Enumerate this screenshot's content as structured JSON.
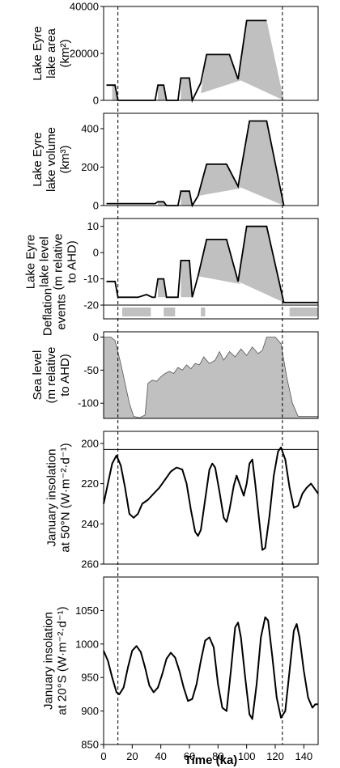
{
  "chart_data": {
    "type": "line",
    "x_axis": {
      "label": "Time (ka)",
      "lim": [
        0,
        150
      ],
      "ticks": [
        "0",
        "20",
        "40",
        "60",
        "80",
        "100",
        "120",
        "140"
      ]
    },
    "markers_ka": [
      10,
      125
    ],
    "fill_color": "#c0c0c0",
    "line_color": "#000000",
    "panels": [
      {
        "id": "area",
        "ylabel": [
          "Lake Eyre",
          "lake area",
          "(km²)"
        ],
        "ylim": [
          0,
          40000
        ],
        "yticks": [
          "0",
          "20000",
          "40000"
        ],
        "step_line": [
          [
            2,
            6500
          ],
          [
            8,
            6500
          ],
          [
            10,
            0
          ],
          [
            24,
            0
          ],
          [
            36,
            0
          ],
          [
            38,
            6500
          ],
          [
            42,
            6500
          ],
          [
            44,
            0
          ],
          [
            52,
            0
          ],
          [
            54,
            9500
          ],
          [
            60,
            9500
          ],
          [
            62,
            0
          ],
          [
            68,
            7500
          ],
          [
            72,
            19500
          ],
          [
            88,
            19500
          ],
          [
            94,
            9000
          ],
          [
            100,
            34000
          ],
          [
            114,
            34000
          ]
        ],
        "fill_polys": [
          [
            [
              6,
              6500
            ],
            [
              8,
              6500
            ],
            [
              10,
              0
            ],
            [
              6,
              0
            ]
          ],
          [
            [
              38,
              6500
            ],
            [
              42,
              6500
            ],
            [
              44,
              0
            ],
            [
              38,
              0
            ]
          ],
          [
            [
              54,
              9500
            ],
            [
              60,
              9500
            ],
            [
              62,
              0
            ],
            [
              54,
              0
            ]
          ],
          [
            [
              72,
              19500
            ],
            [
              88,
              19500
            ],
            [
              94,
              9000
            ],
            [
              96,
              8500
            ],
            [
              68,
              3000
            ]
          ],
          [
            [
              100,
              34000
            ],
            [
              114,
              34000
            ],
            [
              126,
              0
            ],
            [
              94,
              9000
            ]
          ]
        ]
      },
      {
        "id": "volume",
        "ylabel": [
          "Lake Eyre",
          "lake volume",
          "(km³)"
        ],
        "ylim": [
          0,
          480
        ],
        "yticks": [
          "0",
          "200",
          "400"
        ],
        "step_line": [
          [
            2,
            10
          ],
          [
            8,
            10
          ],
          [
            36,
            10
          ],
          [
            38,
            20
          ],
          [
            42,
            20
          ],
          [
            44,
            0
          ],
          [
            52,
            0
          ],
          [
            54,
            75
          ],
          [
            60,
            75
          ],
          [
            62,
            0
          ],
          [
            66,
            50
          ],
          [
            72,
            215
          ],
          [
            86,
            215
          ],
          [
            94,
            100
          ],
          [
            102,
            440
          ],
          [
            114,
            440
          ],
          [
            126,
            0
          ]
        ],
        "fill_polys": [
          [
            [
              38,
              20
            ],
            [
              42,
              20
            ],
            [
              44,
              0
            ],
            [
              38,
              0
            ]
          ],
          [
            [
              54,
              75
            ],
            [
              60,
              75
            ],
            [
              62,
              0
            ],
            [
              54,
              0
            ]
          ],
          [
            [
              72,
              215
            ],
            [
              86,
              215
            ],
            [
              94,
              100
            ],
            [
              96,
              90
            ],
            [
              66,
              50
            ]
          ],
          [
            [
              102,
              440
            ],
            [
              114,
              440
            ],
            [
              126,
              0
            ],
            [
              94,
              100
            ]
          ]
        ]
      },
      {
        "id": "level",
        "ylabel": [
          "Lake Eyre",
          "lake level",
          "(m relative",
          "to AHD)"
        ],
        "ylim": [
          -20,
          13
        ],
        "yticks": [
          "-20",
          "-10",
          "0",
          "10"
        ],
        "step_line": [
          [
            2,
            -11
          ],
          [
            8,
            -11
          ],
          [
            10,
            -17
          ],
          [
            24,
            -17
          ],
          [
            30,
            -16
          ],
          [
            34,
            -17
          ],
          [
            36,
            -17
          ],
          [
            38,
            -10
          ],
          [
            42,
            -10
          ],
          [
            44,
            -17
          ],
          [
            52,
            -17
          ],
          [
            54,
            -3
          ],
          [
            60,
            -3
          ],
          [
            62,
            -17
          ],
          [
            66,
            -9
          ],
          [
            72,
            5
          ],
          [
            86,
            5
          ],
          [
            94,
            -11
          ],
          [
            100,
            10
          ],
          [
            114,
            10
          ],
          [
            126,
            -19
          ],
          [
            150,
            -19
          ]
        ],
        "fill_polys": [
          [
            [
              38,
              -10
            ],
            [
              42,
              -10
            ],
            [
              44,
              -17
            ],
            [
              38,
              -17
            ]
          ],
          [
            [
              54,
              -3
            ],
            [
              60,
              -3
            ],
            [
              62,
              -17
            ],
            [
              54,
              -17
            ]
          ],
          [
            [
              72,
              5
            ],
            [
              86,
              5
            ],
            [
              94,
              -11
            ],
            [
              96,
              -12
            ],
            [
              66,
              -9
            ]
          ],
          [
            [
              100,
              10
            ],
            [
              114,
              10
            ],
            [
              126,
              -19
            ],
            [
              94,
              -11
            ]
          ]
        ]
      },
      {
        "id": "deflation",
        "ylabel": [
          "Deflation",
          "events"
        ],
        "bars_ka": [
          [
            13,
            33
          ],
          [
            42,
            50
          ],
          [
            68,
            71
          ],
          [
            130,
            150
          ]
        ]
      },
      {
        "id": "sea",
        "ylabel": [
          "Sea level",
          "(m relative",
          "to AHD)"
        ],
        "ylim": [
          -123,
          8
        ],
        "yticks": [
          "0",
          "-50",
          "-100"
        ],
        "series": [
          [
            0,
            0
          ],
          [
            5,
            0
          ],
          [
            8,
            -5
          ],
          [
            12,
            -40
          ],
          [
            15,
            -70
          ],
          [
            18,
            -100
          ],
          [
            21,
            -120
          ],
          [
            25,
            -122
          ],
          [
            29,
            -118
          ],
          [
            31,
            -70
          ],
          [
            34,
            -65
          ],
          [
            37,
            -67
          ],
          [
            40,
            -60
          ],
          [
            43,
            -55
          ],
          [
            46,
            -52
          ],
          [
            49,
            -55
          ],
          [
            52,
            -46
          ],
          [
            55,
            -50
          ],
          [
            58,
            -42
          ],
          [
            61,
            -48
          ],
          [
            64,
            -40
          ],
          [
            67,
            -42
          ],
          [
            70,
            -30
          ],
          [
            74,
            -40
          ],
          [
            78,
            -35
          ],
          [
            81,
            -22
          ],
          [
            84,
            -35
          ],
          [
            88,
            -22
          ],
          [
            92,
            -30
          ],
          [
            96,
            -18
          ],
          [
            100,
            -28
          ],
          [
            104,
            -15
          ],
          [
            108,
            -25
          ],
          [
            111,
            -20
          ],
          [
            114,
            0
          ],
          [
            120,
            0
          ],
          [
            124,
            -10
          ],
          [
            128,
            -60
          ],
          [
            132,
            -100
          ],
          [
            136,
            -120
          ],
          [
            150,
            -120
          ]
        ]
      },
      {
        "id": "ins50",
        "ylabel": [
          "January insolation",
          "at 50°N (W·m⁻²·d⁻¹)"
        ],
        "ylim": [
          260,
          194
        ],
        "yticks": [
          "200",
          "220",
          "240",
          "260"
        ],
        "ref_line": 203,
        "series": [
          [
            0,
            230
          ],
          [
            3,
            220
          ],
          [
            6,
            210
          ],
          [
            9,
            206
          ],
          [
            12,
            211
          ],
          [
            15,
            222
          ],
          [
            18,
            235
          ],
          [
            21,
            237
          ],
          [
            24,
            235
          ],
          [
            27,
            230
          ],
          [
            31,
            228
          ],
          [
            35,
            225
          ],
          [
            39,
            222
          ],
          [
            43,
            218
          ],
          [
            47,
            214
          ],
          [
            51,
            212
          ],
          [
            55,
            213
          ],
          [
            58,
            220
          ],
          [
            61,
            233
          ],
          [
            64,
            244
          ],
          [
            66,
            246
          ],
          [
            68,
            243
          ],
          [
            71,
            228
          ],
          [
            74,
            213
          ],
          [
            76,
            210
          ],
          [
            78,
            212
          ],
          [
            81,
            224
          ],
          [
            84,
            237
          ],
          [
            86,
            239
          ],
          [
            88,
            233
          ],
          [
            91,
            221
          ],
          [
            93,
            216
          ],
          [
            96,
            222
          ],
          [
            98,
            226
          ],
          [
            100,
            220
          ],
          [
            102,
            210
          ],
          [
            104,
            208
          ],
          [
            106,
            220
          ],
          [
            109,
            240
          ],
          [
            111,
            253
          ],
          [
            113,
            252
          ],
          [
            116,
            236
          ],
          [
            119,
            216
          ],
          [
            122,
            204
          ],
          [
            124,
            202
          ],
          [
            127,
            208
          ],
          [
            130,
            222
          ],
          [
            133,
            232
          ],
          [
            136,
            231
          ],
          [
            139,
            225
          ],
          [
            142,
            222
          ],
          [
            145,
            220
          ],
          [
            148,
            223
          ],
          [
            150,
            225
          ]
        ]
      },
      {
        "id": "ins20",
        "ylabel": [
          "January insolation",
          "at 20°S (W·m⁻²·d⁻¹)"
        ],
        "ylim": [
          850,
          1100
        ],
        "yticks": [
          "850",
          "900",
          "950",
          "1000",
          "1050"
        ],
        "series": [
          [
            0,
            990
          ],
          [
            3,
            975
          ],
          [
            6,
            950
          ],
          [
            9,
            928
          ],
          [
            11,
            925
          ],
          [
            14,
            935
          ],
          [
            17,
            965
          ],
          [
            20,
            990
          ],
          [
            23,
            997
          ],
          [
            26,
            988
          ],
          [
            29,
            965
          ],
          [
            32,
            938
          ],
          [
            35,
            928
          ],
          [
            38,
            935
          ],
          [
            41,
            955
          ],
          [
            44,
            978
          ],
          [
            47,
            987
          ],
          [
            50,
            980
          ],
          [
            53,
            960
          ],
          [
            56,
            935
          ],
          [
            59,
            915
          ],
          [
            62,
            918
          ],
          [
            65,
            940
          ],
          [
            68,
            975
          ],
          [
            71,
            1005
          ],
          [
            74,
            1010
          ],
          [
            77,
            995
          ],
          [
            80,
            940
          ],
          [
            83,
            905
          ],
          [
            86,
            900
          ],
          [
            89,
            960
          ],
          [
            92,
            1025
          ],
          [
            94,
            1032
          ],
          [
            96,
            1010
          ],
          [
            99,
            950
          ],
          [
            102,
            895
          ],
          [
            104,
            888
          ],
          [
            107,
            940
          ],
          [
            110,
            1010
          ],
          [
            113,
            1040
          ],
          [
            115,
            1035
          ],
          [
            118,
            980
          ],
          [
            121,
            920
          ],
          [
            124,
            890
          ],
          [
            127,
            900
          ],
          [
            130,
            960
          ],
          [
            133,
            1020
          ],
          [
            135,
            1030
          ],
          [
            137,
            1010
          ],
          [
            140,
            960
          ],
          [
            143,
            920
          ],
          [
            146,
            905
          ],
          [
            148,
            910
          ],
          [
            150,
            910
          ]
        ]
      }
    ]
  }
}
